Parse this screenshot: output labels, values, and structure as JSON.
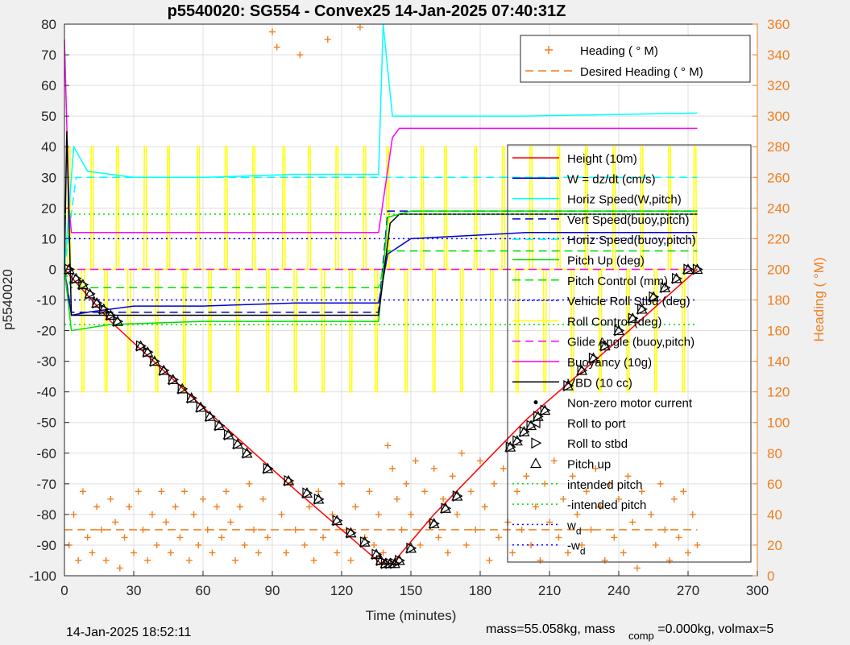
{
  "chart_data": {
    "type": "line",
    "title": "p5540020: SG554 - Convex25 14-Jan-2025 07:40:31Z",
    "xlabel": "Time (minutes)",
    "ylabel": "p5540020",
    "ylabel_right": "Heading (  °M)",
    "xlim": [
      0,
      300
    ],
    "ylim": [
      -100,
      80
    ],
    "ylim_right": [
      0,
      360
    ],
    "x_ticks": [
      0,
      30,
      60,
      90,
      120,
      150,
      180,
      210,
      240,
      270,
      300
    ],
    "y_ticks": [
      -100,
      -90,
      -80,
      -70,
      -60,
      -50,
      -40,
      -30,
      -20,
      -10,
      0,
      10,
      20,
      30,
      40,
      50,
      60,
      70,
      80
    ],
    "y_ticks_right": [
      0,
      20,
      40,
      60,
      80,
      100,
      120,
      140,
      160,
      180,
      200,
      220,
      240,
      260,
      280,
      300,
      320,
      340,
      360
    ],
    "grid": true,
    "legend_top": {
      "placement": "top-right",
      "entries": [
        {
          "label": "Heading (  ° M)",
          "color": "#f07f1e",
          "style": "plus"
        },
        {
          "label": "Desired Heading (   ° M)",
          "color": "#f07f1e",
          "style": "dash"
        }
      ]
    },
    "legend_main": {
      "placement": "right",
      "entries": [
        {
          "label": "Height (10m)",
          "color": "#ff0000",
          "style": "solid"
        },
        {
          "label": "W = dz/dt (cm/s)",
          "color": "#0000cc",
          "style": "solid"
        },
        {
          "label": "Horiz Speed(W,pitch)",
          "color": "#00ffff",
          "style": "solid"
        },
        {
          "label": "Vert Speed(buoy,pitch)",
          "color": "#0000cc",
          "style": "dash"
        },
        {
          "label": "Horiz Speed(buoy,pitch)",
          "color": "#00ffff",
          "style": "dash"
        },
        {
          "label": "Pitch Up (deg)",
          "color": "#00dd00",
          "style": "solid"
        },
        {
          "label": "Pitch Control (mm)",
          "color": "#00dd00",
          "style": "dash"
        },
        {
          "label": "Vehicle Roll Stbd (deg)",
          "color": "#0000ff",
          "style": "dot"
        },
        {
          "label": "Roll Control (deg)",
          "color": "#ffff00",
          "style": "solid"
        },
        {
          "label": "Glide Angle (buoy,pitch)",
          "color": "#ff00ff",
          "style": "dash"
        },
        {
          "label": "Buoyancy (10g)",
          "color": "#ff00ff",
          "style": "solid"
        },
        {
          "label": "VBD (10 cc)",
          "color": "#000000",
          "style": "solid"
        },
        {
          "label": "Non-zero motor current",
          "color": "#000000",
          "style": "dotmark"
        },
        {
          "label": "Roll to port",
          "color": "#000000",
          "style": "tri-left"
        },
        {
          "label": "Roll to stbd",
          "color": "#000000",
          "style": "tri-right"
        },
        {
          "label": "Pitch up",
          "color": "#000000",
          "style": "tri-up"
        },
        {
          "label": "intended pitch",
          "color": "#00dd00",
          "style": "dot"
        },
        {
          "label": "-intended pitch",
          "color": "#00dd00",
          "style": "dot"
        },
        {
          "label": "w",
          "sub": "d",
          "color": "#0000ff",
          "style": "dot"
        },
        {
          "label": "-w",
          "sub": "d",
          "color": "#0000ff",
          "style": "dot"
        }
      ]
    },
    "series": [
      {
        "name": "Height (10m)",
        "color": "#ff0000",
        "x": [
          0,
          20,
          60,
          100,
          137,
          142,
          160,
          200,
          240,
          274
        ],
        "y": [
          0,
          -17,
          -45,
          -72,
          -96,
          -96,
          -80,
          -49,
          -23,
          0
        ]
      },
      {
        "name": "W = dz/dt (cm/s)",
        "color": "#0000cc",
        "x": [
          0,
          3,
          10,
          30,
          60,
          100,
          136,
          140,
          150,
          200,
          274
        ],
        "y": [
          0,
          -15,
          -14,
          -12,
          -12,
          -11,
          -11,
          5,
          10,
          12,
          12
        ]
      },
      {
        "name": "Horiz Speed(W,pitch)",
        "color": "#00ffff",
        "x": [
          0,
          4,
          10,
          30,
          60,
          100,
          136,
          138,
          142,
          170,
          200,
          274
        ],
        "y": [
          0,
          40,
          32,
          30,
          30,
          31,
          31,
          80,
          50,
          50,
          50,
          51
        ]
      },
      {
        "name": "Vert Speed(buoy,pitch)",
        "color": "#0000cc",
        "x": [
          0,
          3,
          136,
          140,
          274
        ],
        "y": [
          0,
          -14,
          -14,
          19,
          19
        ]
      },
      {
        "name": "Horiz Speed(buoy,pitch)",
        "color": "#00ffff",
        "x": [
          0,
          5,
          136,
          140,
          274
        ],
        "y": [
          0,
          30,
          30,
          30,
          30
        ]
      },
      {
        "name": "Pitch Up (deg)",
        "color": "#00dd00",
        "x": [
          0,
          3,
          20,
          60,
          100,
          136,
          140,
          150,
          200,
          274
        ],
        "y": [
          0,
          -20,
          -18,
          -17,
          -17,
          -17,
          17,
          19,
          19,
          19
        ]
      },
      {
        "name": "Pitch Control (mm)",
        "color": "#00dd00",
        "x": [
          0,
          3,
          136,
          140,
          274
        ],
        "y": [
          0,
          -6,
          -6,
          6,
          6
        ]
      },
      {
        "name": "Glide Angle (buoy,pitch)",
        "color": "#ff00ff",
        "x": [
          0,
          274
        ],
        "y": [
          0,
          0
        ]
      },
      {
        "name": "Buoyancy (10g)",
        "color": "#ff00ff",
        "x": [
          0,
          2,
          3,
          136,
          142,
          145,
          274
        ],
        "y": [
          75,
          20,
          12,
          12,
          43,
          46,
          46
        ]
      },
      {
        "name": "VBD (10 cc)",
        "color": "#000000",
        "x": [
          0,
          1,
          3,
          136,
          141,
          145,
          274
        ],
        "y": [
          0,
          45,
          -15,
          -15,
          15,
          18,
          18
        ]
      },
      {
        "name": "intended pitch",
        "color": "#00dd00",
        "x": [
          0,
          274
        ],
        "y": [
          18,
          18
        ]
      },
      {
        "name": "-intended pitch",
        "color": "#00dd00",
        "x": [
          0,
          274
        ],
        "y": [
          -18,
          -18
        ]
      },
      {
        "name": "w_d",
        "color": "#0000ff",
        "x": [
          0,
          274
        ],
        "y": [
          10,
          10
        ]
      },
      {
        "name": "-w_d",
        "color": "#0000ff",
        "x": [
          0,
          274
        ],
        "y": [
          -10,
          -10
        ]
      }
    ],
    "roll_control": {
      "name": "Roll Control (deg)",
      "color": "#ffff00",
      "pulse_x": [
        2,
        8,
        12,
        18,
        23,
        28,
        35,
        40,
        45,
        52,
        58,
        63,
        70,
        75,
        82,
        88,
        95,
        100,
        106,
        112,
        118,
        124,
        130,
        135,
        140,
        148,
        155,
        160,
        165,
        172,
        178,
        185,
        190,
        196,
        202,
        208,
        214,
        220,
        226,
        232,
        238,
        244,
        250,
        256,
        262,
        268,
        273
      ],
      "pulse_amplitude": [
        40,
        -40
      ]
    },
    "pitch_up_markers": {
      "x": [
        2,
        5,
        8,
        11,
        14,
        17,
        20,
        23,
        33,
        36,
        39,
        43,
        47,
        51,
        55,
        59,
        63,
        67,
        71,
        75,
        79,
        88,
        97,
        105,
        110,
        118,
        124,
        130,
        135,
        137,
        139,
        141,
        143,
        145,
        150,
        160,
        165,
        170,
        193,
        196,
        199,
        202,
        205,
        208,
        218,
        224,
        229,
        234,
        240,
        246,
        250,
        255,
        260,
        265,
        270,
        274
      ],
      "y": [
        0,
        -3,
        -5,
        -8,
        -11,
        -13,
        -15,
        -17,
        -25,
        -27,
        -30,
        -33,
        -36,
        -39,
        -42,
        -45,
        -48,
        -51,
        -54,
        -57,
        -60,
        -65,
        -69,
        -73,
        -75,
        -82,
        -86,
        -89,
        -93,
        -95,
        -96,
        -96,
        -96,
        -95,
        -91,
        -83,
        -78,
        -74,
        -58,
        -56,
        -53,
        -51,
        -48,
        -46,
        -38,
        -33,
        -29,
        -25,
        -20,
        -16,
        -13,
        -9,
        -6,
        -3,
        0,
        0
      ]
    },
    "heading": {
      "name": "Heading (  ° M)",
      "color": "#f07f1e",
      "axis": "right",
      "desired_value": 30,
      "samples": [
        {
          "x": 2,
          "y": 20
        },
        {
          "x": 4,
          "y": 40
        },
        {
          "x": 6,
          "y": 10
        },
        {
          "x": 8,
          "y": 55
        },
        {
          "x": 10,
          "y": 25
        },
        {
          "x": 12,
          "y": 15
        },
        {
          "x": 14,
          "y": 45
        },
        {
          "x": 16,
          "y": 30
        },
        {
          "x": 18,
          "y": 10
        },
        {
          "x": 20,
          "y": 50
        },
        {
          "x": 22,
          "y": 35
        },
        {
          "x": 24,
          "y": 5
        },
        {
          "x": 26,
          "y": 25
        },
        {
          "x": 28,
          "y": 45
        },
        {
          "x": 30,
          "y": 15
        },
        {
          "x": 32,
          "y": 55
        },
        {
          "x": 34,
          "y": 30
        },
        {
          "x": 36,
          "y": 10
        },
        {
          "x": 38,
          "y": 40
        },
        {
          "x": 40,
          "y": 20
        },
        {
          "x": 42,
          "y": 55
        },
        {
          "x": 44,
          "y": 35
        },
        {
          "x": 46,
          "y": 15
        },
        {
          "x": 48,
          "y": 45
        },
        {
          "x": 50,
          "y": 25
        },
        {
          "x": 52,
          "y": 55
        },
        {
          "x": 54,
          "y": 10
        },
        {
          "x": 56,
          "y": 40
        },
        {
          "x": 58,
          "y": 20
        },
        {
          "x": 60,
          "y": 50
        },
        {
          "x": 62,
          "y": 30
        },
        {
          "x": 64,
          "y": 15
        },
        {
          "x": 66,
          "y": 45
        },
        {
          "x": 68,
          "y": 25
        },
        {
          "x": 70,
          "y": 55
        },
        {
          "x": 72,
          "y": 35
        },
        {
          "x": 74,
          "y": 10
        },
        {
          "x": 76,
          "y": 45
        },
        {
          "x": 78,
          "y": 20
        },
        {
          "x": 80,
          "y": 60
        },
        {
          "x": 82,
          "y": 30
        },
        {
          "x": 84,
          "y": 15
        },
        {
          "x": 86,
          "y": 50
        },
        {
          "x": 88,
          "y": 25
        },
        {
          "x": 90,
          "y": 355
        },
        {
          "x": 92,
          "y": 345
        },
        {
          "x": 94,
          "y": 40
        },
        {
          "x": 96,
          "y": 15
        },
        {
          "x": 98,
          "y": 60
        },
        {
          "x": 100,
          "y": 30
        },
        {
          "x": 102,
          "y": 340
        },
        {
          "x": 104,
          "y": 20
        },
        {
          "x": 106,
          "y": 45
        },
        {
          "x": 108,
          "y": 10
        },
        {
          "x": 110,
          "y": 55
        },
        {
          "x": 112,
          "y": 25
        },
        {
          "x": 114,
          "y": 350
        },
        {
          "x": 116,
          "y": 40
        },
        {
          "x": 118,
          "y": 15
        },
        {
          "x": 120,
          "y": 60
        },
        {
          "x": 122,
          "y": 30
        },
        {
          "x": 124,
          "y": 10
        },
        {
          "x": 126,
          "y": 45
        },
        {
          "x": 128,
          "y": 358
        },
        {
          "x": 130,
          "y": 25
        },
        {
          "x": 132,
          "y": 55
        },
        {
          "x": 134,
          "y": 20
        },
        {
          "x": 136,
          "y": 40
        },
        {
          "x": 138,
          "y": 15
        },
        {
          "x": 140,
          "y": 85
        },
        {
          "x": 142,
          "y": 70
        },
        {
          "x": 144,
          "y": 50
        },
        {
          "x": 146,
          "y": 30
        },
        {
          "x": 148,
          "y": 60
        },
        {
          "x": 150,
          "y": 40
        },
        {
          "x": 152,
          "y": 75
        },
        {
          "x": 154,
          "y": 20
        },
        {
          "x": 156,
          "y": 55
        },
        {
          "x": 158,
          "y": 35
        },
        {
          "x": 160,
          "y": 70
        },
        {
          "x": 162,
          "y": 25
        },
        {
          "x": 164,
          "y": 50
        },
        {
          "x": 166,
          "y": 15
        },
        {
          "x": 168,
          "y": 65
        },
        {
          "x": 170,
          "y": 40
        },
        {
          "x": 172,
          "y": 80
        },
        {
          "x": 174,
          "y": 20
        },
        {
          "x": 176,
          "y": 55
        },
        {
          "x": 178,
          "y": 30
        },
        {
          "x": 180,
          "y": 75
        },
        {
          "x": 182,
          "y": 45
        },
        {
          "x": 184,
          "y": 10
        },
        {
          "x": 186,
          "y": 60
        },
        {
          "x": 188,
          "y": 25
        },
        {
          "x": 190,
          "y": 70
        },
        {
          "x": 192,
          "y": 35
        },
        {
          "x": 194,
          "y": 15
        },
        {
          "x": 196,
          "y": 55
        },
        {
          "x": 198,
          "y": 30
        },
        {
          "x": 200,
          "y": 65
        },
        {
          "x": 202,
          "y": 20
        },
        {
          "x": 204,
          "y": 45
        },
        {
          "x": 206,
          "y": 10
        },
        {
          "x": 208,
          "y": 60
        },
        {
          "x": 210,
          "y": 35
        },
        {
          "x": 212,
          "y": 75
        },
        {
          "x": 214,
          "y": 25
        },
        {
          "x": 216,
          "y": 50
        },
        {
          "x": 218,
          "y": 15
        },
        {
          "x": 220,
          "y": 65
        },
        {
          "x": 222,
          "y": 40
        },
        {
          "x": 224,
          "y": 20
        },
        {
          "x": 226,
          "y": 55
        },
        {
          "x": 228,
          "y": 30
        },
        {
          "x": 230,
          "y": 70
        },
        {
          "x": 232,
          "y": 45
        },
        {
          "x": 234,
          "y": 10
        },
        {
          "x": 236,
          "y": 60
        },
        {
          "x": 238,
          "y": 25
        },
        {
          "x": 240,
          "y": 50
        },
        {
          "x": 242,
          "y": 15
        },
        {
          "x": 244,
          "y": 65
        },
        {
          "x": 246,
          "y": 35
        },
        {
          "x": 248,
          "y": 5
        },
        {
          "x": 250,
          "y": 55
        },
        {
          "x": 252,
          "y": 340
        },
        {
          "x": 254,
          "y": 40
        },
        {
          "x": 256,
          "y": 20
        },
        {
          "x": 258,
          "y": 60
        },
        {
          "x": 260,
          "y": 30
        },
        {
          "x": 262,
          "y": 10
        },
        {
          "x": 264,
          "y": 50
        },
        {
          "x": 266,
          "y": 25
        },
        {
          "x": 268,
          "y": 55
        },
        {
          "x": 270,
          "y": 15
        },
        {
          "x": 272,
          "y": 40
        },
        {
          "x": 274,
          "y": 20
        }
      ]
    }
  },
  "footer": {
    "timestamp": "14-Jan-2025 18:52:11",
    "mass_prefix": "mass=55.058kg, mass",
    "mass_sub": "comp",
    "mass_suffix": "=0.000kg, volmax=5"
  }
}
